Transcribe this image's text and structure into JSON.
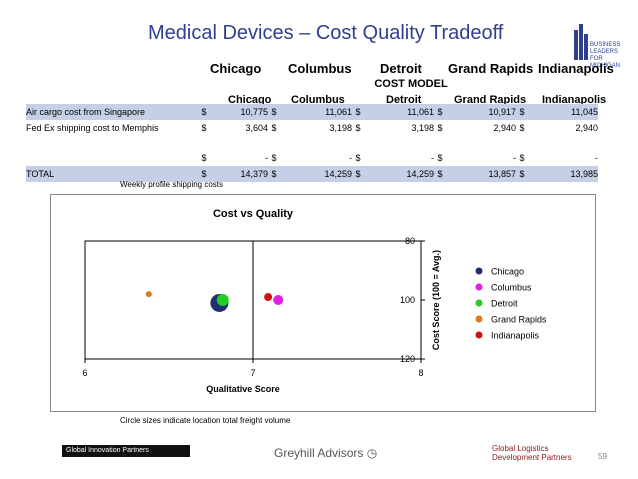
{
  "title": "Medical Devices – Cost Quality Tradeoff",
  "logo_text": "BUSINESS LEADERS FOR MICHIGAN",
  "cities_header": [
    "Chicago",
    "Columbus",
    "Detroit",
    "Grand Rapids",
    "Indianapolis"
  ],
  "cost_model_label": "COST MODEL",
  "table": {
    "columns": [
      "Chicago",
      "Columbus",
      "Detroit",
      "Grand Rapids",
      "Indianapolis"
    ],
    "rows": [
      {
        "label": "Air cargo cost from Singapore",
        "cur": "$",
        "values": [
          "10,775",
          "11,061",
          "11,061",
          "10,917",
          "11,045"
        ]
      },
      {
        "label": "Fed Ex shipping cost to Memphis",
        "cur": "$",
        "values": [
          "3,604",
          "3,198",
          "3,198",
          "2,940",
          "2,940"
        ]
      },
      {
        "label": "",
        "cur": "$",
        "values": [
          "-",
          "-",
          "-",
          "-",
          "-"
        ]
      },
      {
        "label": "TOTAL",
        "cur": "$",
        "values": [
          "14,379",
          "14,259",
          "14,259",
          "13,857",
          "13,985"
        ]
      }
    ]
  },
  "weekly_note": "Weekly profile shipping costs",
  "circle_note": "Circle sizes indicate location total freight volume",
  "chart_data": {
    "type": "scatter",
    "title": "Cost vs Quality",
    "xlabel": "Qualitative Score",
    "ylabel": "Cost Score (100 = Avg.)",
    "xlim": [
      6,
      8
    ],
    "ylim": [
      80,
      120
    ],
    "y_inverted": true,
    "x_ticks": [
      "6",
      "7",
      "8"
    ],
    "y_ticks": [
      "80",
      "100",
      "120"
    ],
    "reference_x": 7,
    "series": [
      {
        "name": "Chicago",
        "color": "#1f2f6f",
        "x": 6.8,
        "y": 101,
        "size": 9
      },
      {
        "name": "Columbus",
        "color": "#e020e0",
        "x": 7.15,
        "y": 100,
        "size": 5
      },
      {
        "name": "Detroit",
        "color": "#22cc22",
        "x": 6.82,
        "y": 100,
        "size": 6
      },
      {
        "name": "Grand Rapids",
        "color": "#e07a1a",
        "x": 6.38,
        "y": 98,
        "size": 3
      },
      {
        "name": "Indianapolis",
        "color": "#d01010",
        "x": 7.09,
        "y": 99,
        "size": 4
      }
    ],
    "legend_position": "right"
  },
  "footer": {
    "left": "Global Innovation Partners",
    "middle": "Greyhill Advisors",
    "right_line1": "Global Logistics",
    "right_line2": "Development Partners",
    "page": "59"
  }
}
